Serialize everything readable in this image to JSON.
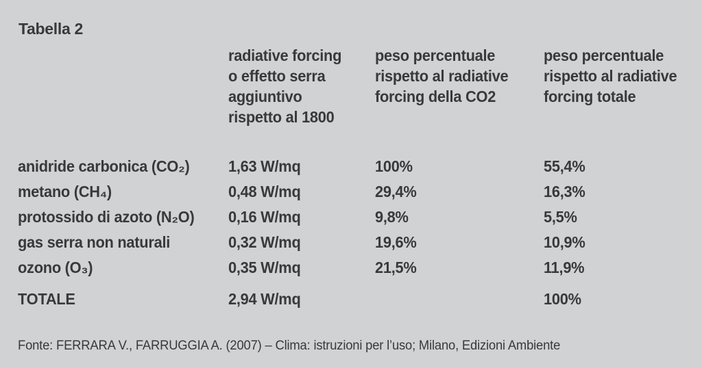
{
  "page": {
    "title": "Tabella 2",
    "background_color": "#d0d2d3",
    "text_color": "#39393b"
  },
  "table": {
    "columns": [
      {
        "header": ""
      },
      {
        "header": "radiative forcing\no effetto serra\naggiuntivo\nrispetto al 1800"
      },
      {
        "header": "peso percentuale\nrispetto al radiative\nforcing della CO2"
      },
      {
        "header": "peso percentuale\nrispetto al radiative\nforcing totale"
      }
    ],
    "rows": [
      {
        "label": "anidride carbonica (CO₂)",
        "rf": "1,63 W/mq",
        "pct_co2": "100%",
        "pct_tot": "55,4%"
      },
      {
        "label": "metano (CH₄)",
        "rf": "0,48 W/mq",
        "pct_co2": "29,4%",
        "pct_tot": "16,3%"
      },
      {
        "label": "protossido di azoto (N₂O)",
        "rf": "0,16 W/mq",
        "pct_co2": "9,8%",
        "pct_tot": "5,5%"
      },
      {
        "label": "gas serra non naturali",
        "rf": "0,32 W/mq",
        "pct_co2": "19,6%",
        "pct_tot": "10,9%"
      },
      {
        "label": "ozono (O₃)",
        "rf": "0,35 W/mq",
        "pct_co2": "21,5%",
        "pct_tot": "11,9%"
      }
    ],
    "total_row": {
      "label": "TOTALE",
      "rf": "2,94 W/mq",
      "pct_co2": "",
      "pct_tot": "100%"
    }
  },
  "footer": {
    "source": "Fonte: FERRARA V., FARRUGGIA A. (2007) – Clima: istruzioni per l’uso; Milano, Edizioni Ambiente"
  },
  "chart_data": {
    "type": "table",
    "title": "Tabella 2",
    "columns": [
      "",
      "radiative forcing o effetto serra aggiuntivo rispetto al 1800",
      "peso percentuale rispetto al radiative forcing della CO2",
      "peso percentuale rispetto al radiative forcing totale"
    ],
    "rows": [
      [
        "anidride carbonica (CO₂)",
        "1,63 W/mq",
        "100%",
        "55,4%"
      ],
      [
        "metano (CH₄)",
        "0,48 W/mq",
        "29,4%",
        "16,3%"
      ],
      [
        "protossido di azoto (N₂O)",
        "0,16 W/mq",
        "9,8%",
        "5,5%"
      ],
      [
        "gas serra non naturali",
        "0,32 W/mq",
        "19,6%",
        "10,9%"
      ],
      [
        "ozono (O₃)",
        "0,35 W/mq",
        "21,5%",
        "11,9%"
      ],
      [
        "TOTALE",
        "2,94 W/mq",
        "",
        "100%"
      ]
    ]
  }
}
